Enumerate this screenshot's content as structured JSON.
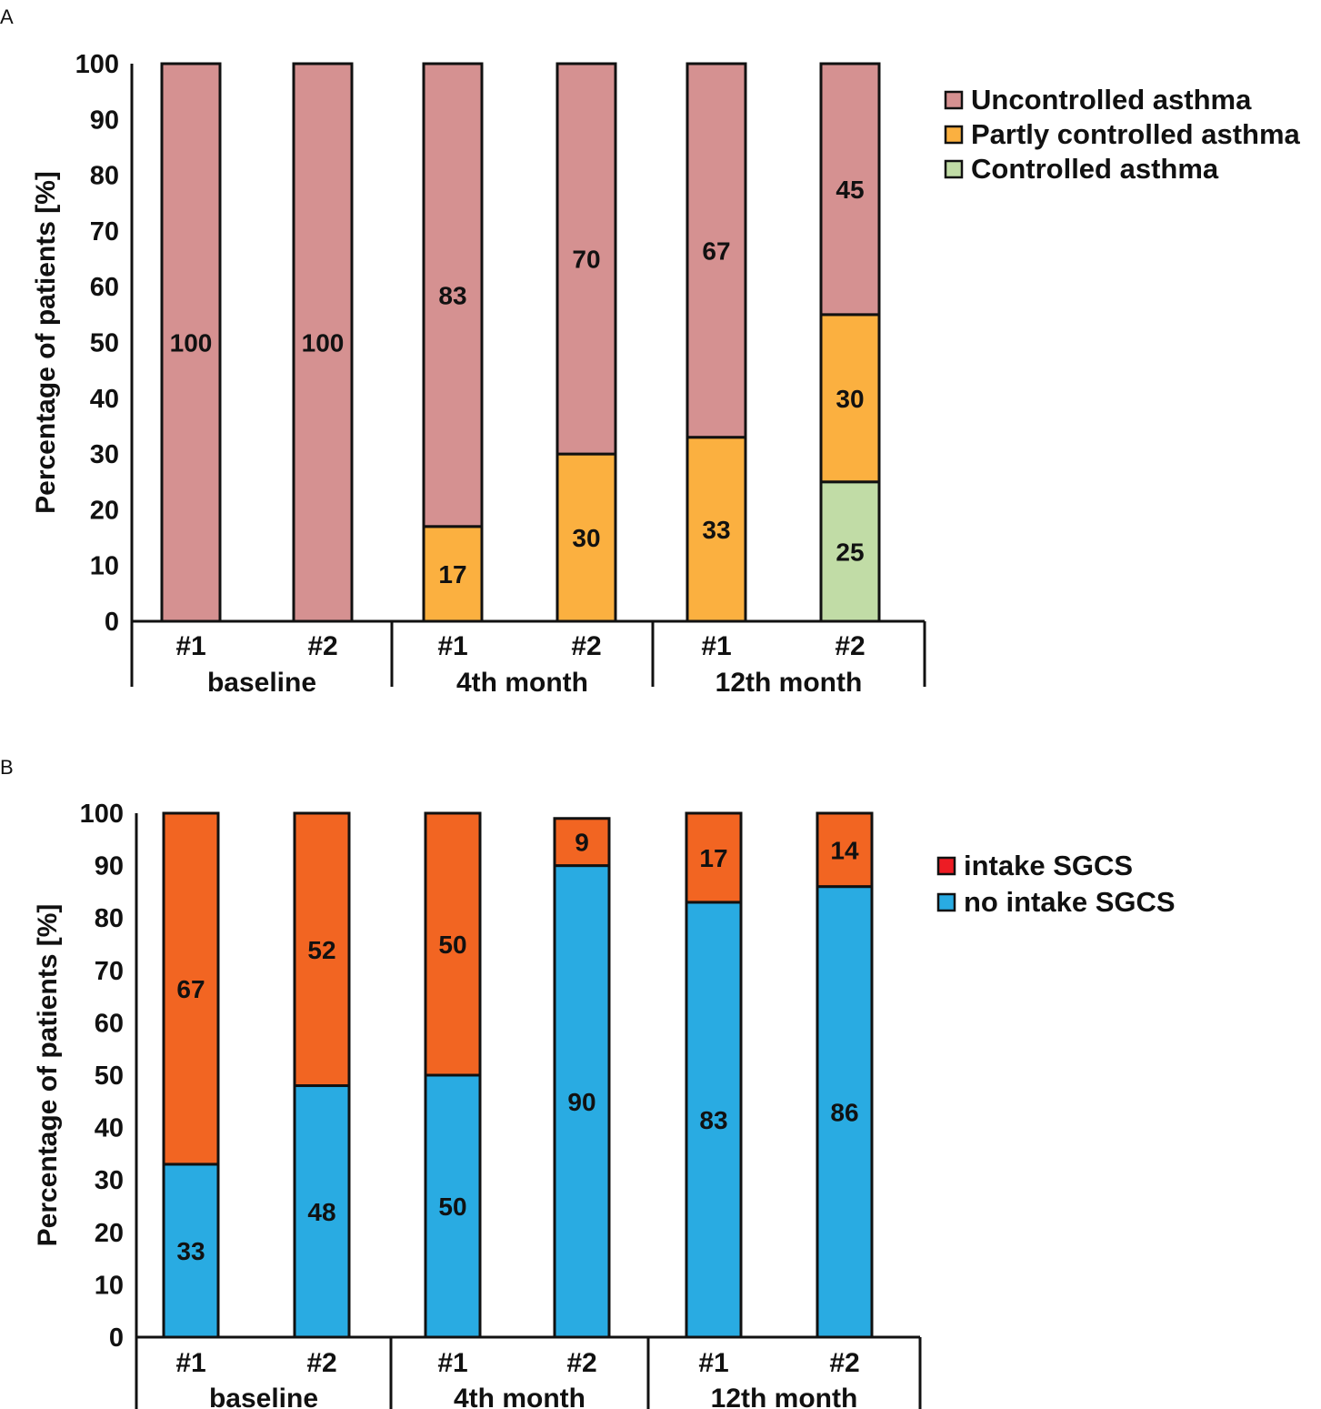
{
  "chart_data": [
    {
      "panel": "A",
      "type": "bar",
      "stacked": true,
      "ylabel": "Percentage of patients [%]",
      "ylim": [
        0,
        100
      ],
      "yticks": [
        0,
        10,
        20,
        30,
        40,
        50,
        60,
        70,
        80,
        90,
        100
      ],
      "categories": [
        "#1",
        "#2",
        "#1",
        "#2",
        "#1",
        "#2"
      ],
      "groups": [
        "baseline",
        "4th month",
        "12th month"
      ],
      "legend_position": "top-right",
      "series": [
        {
          "name": "Controlled asthma",
          "color": "#c1dca6",
          "values": [
            0,
            0,
            0,
            0,
            0,
            25
          ]
        },
        {
          "name": "Partly controlled asthma",
          "color": "#fbb040",
          "values": [
            0,
            0,
            17,
            30,
            33,
            30
          ]
        },
        {
          "name": "Uncontrolled asthma",
          "color": "#d59191",
          "values": [
            100,
            100,
            83,
            70,
            67,
            45
          ]
        }
      ],
      "legend_order": [
        "Uncontrolled asthma",
        "Partly controlled asthma",
        "Controlled asthma"
      ]
    },
    {
      "panel": "B",
      "type": "bar",
      "stacked": true,
      "ylabel": "Percentage of patients [%]",
      "ylim": [
        0,
        100
      ],
      "yticks": [
        0,
        10,
        20,
        30,
        40,
        50,
        60,
        70,
        80,
        90,
        100
      ],
      "categories": [
        "#1",
        "#2",
        "#1",
        "#2",
        "#1",
        "#2"
      ],
      "groups": [
        "baseline",
        "4th month",
        "12th month"
      ],
      "legend_position": "top-right",
      "series": [
        {
          "name": "no intake SGCS",
          "color": "#29abe2",
          "values": [
            33,
            48,
            50,
            90,
            83,
            86
          ]
        },
        {
          "name": "intake SGCS",
          "color": "#f26522",
          "values": [
            67,
            52,
            50,
            9,
            17,
            14
          ]
        }
      ],
      "legend_order": [
        "intake SGCS",
        "no intake SGCS"
      ],
      "legend_swatch_colors": {
        "intake SGCS": "#ed1c24",
        "no intake SGCS": "#29abe2"
      }
    }
  ]
}
